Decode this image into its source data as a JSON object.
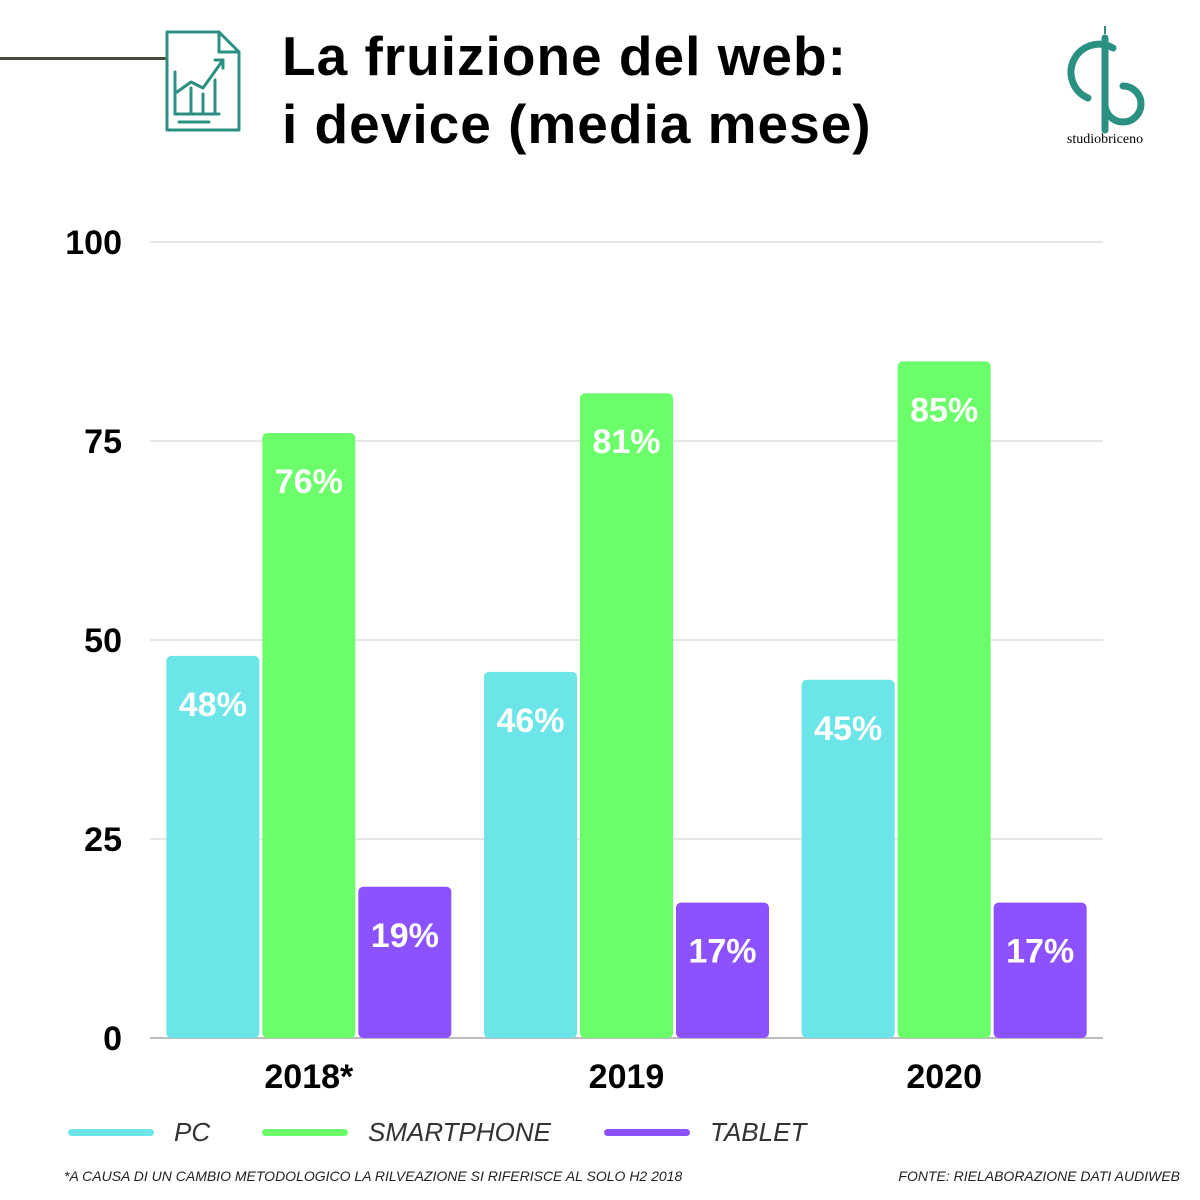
{
  "header": {
    "title_line1": "La fruizione del web:",
    "title_line2": "i device (media mese)",
    "icon": "report-chart-icon",
    "accent_color": "#2a9080"
  },
  "brand": {
    "logo_text": "studiobriceno",
    "logo_icon": "studiobriceno-logo"
  },
  "chart_data": {
    "type": "bar",
    "categories": [
      "2018*",
      "2019",
      "2020"
    ],
    "series": [
      {
        "name": "PC",
        "values": [
          48,
          46,
          45
        ],
        "labels": [
          "48%",
          "46%",
          "45%"
        ],
        "color": "#6ce5e8"
      },
      {
        "name": "SMARTPHONE",
        "values": [
          76,
          81,
          85
        ],
        "labels": [
          "76%",
          "81%",
          "85%"
        ],
        "color": "#6cfe6a"
      },
      {
        "name": "TABLET",
        "values": [
          19,
          17,
          17
        ],
        "labels": [
          "19%",
          "17%",
          "17%"
        ],
        "color": "#8c52ff"
      }
    ],
    "y_ticks": [
      "0",
      "25",
      "50",
      "75",
      "100"
    ],
    "ylim": [
      0,
      100
    ],
    "grid": true,
    "legend_position": "bottom"
  },
  "footer": {
    "footnote": "*A CAUSA DI UN CAMBIO METODOLOGICO LA RILVEAZIONE SI RIFERISCE AL SOLO H2 2018",
    "source": "FONTE: RIELABORAZIONE DATI AUDIWEB"
  }
}
